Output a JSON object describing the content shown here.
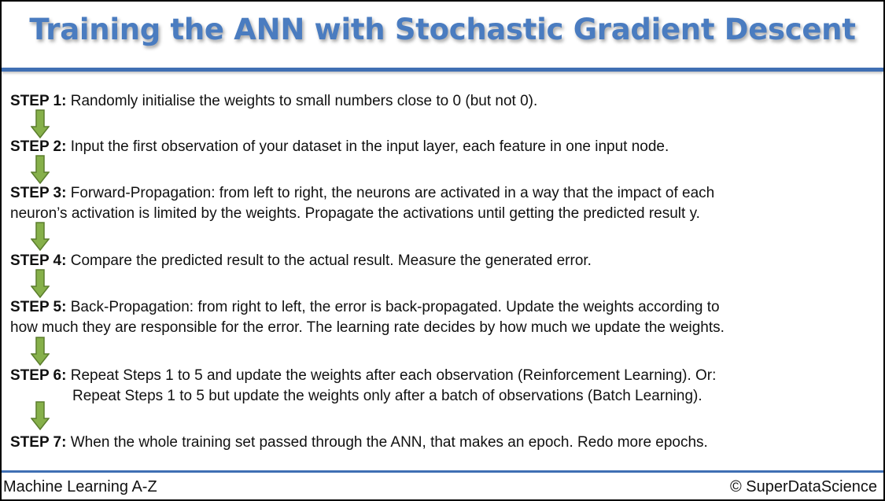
{
  "title": "Training the ANN with Stochastic Gradient Descent",
  "steps": [
    {
      "label": "STEP 1:",
      "lines": [
        "Randomly initialise the weights to small numbers close to 0 (but not 0)."
      ]
    },
    {
      "label": "STEP 2:",
      "lines": [
        "Input the first observation of your dataset in the input layer, each feature in one input node."
      ]
    },
    {
      "label": "STEP 3:",
      "lines": [
        "Forward-Propagation: from left to right, the neurons are activated in a way that the impact of each",
        "neuron’s activation is limited by the weights. Propagate the activations until getting the predicted result y."
      ]
    },
    {
      "label": "STEP 4:",
      "lines": [
        "Compare the predicted result to the actual result. Measure the generated error."
      ]
    },
    {
      "label": "STEP 5:",
      "lines": [
        "Back-Propagation: from right to left, the error is back-propagated. Update the weights according to",
        "how much they are responsible for the error. The learning rate decides by how much we update the weights."
      ]
    },
    {
      "label": "STEP 6:",
      "lines": [
        "Repeat Steps 1 to 5 and update the weights after each observation (Reinforcement Learning). Or:",
        "Repeat Steps 1 to 5 but update the weights only after a batch of observations (Batch Learning)."
      ]
    },
    {
      "label": "STEP 7:",
      "lines": [
        "When the whole training set passed through the ANN, that makes an epoch. Redo more epochs."
      ]
    }
  ],
  "footer": {
    "left": "Machine Learning A-Z",
    "right": "© SuperDataScience"
  },
  "colors": {
    "title": "#4a7cc0",
    "rule": "#3f6fb3",
    "arrow_fill": "#86b04a",
    "arrow_stroke": "#5b7d2d"
  },
  "icons": {
    "arrow": "down-arrow-icon"
  }
}
